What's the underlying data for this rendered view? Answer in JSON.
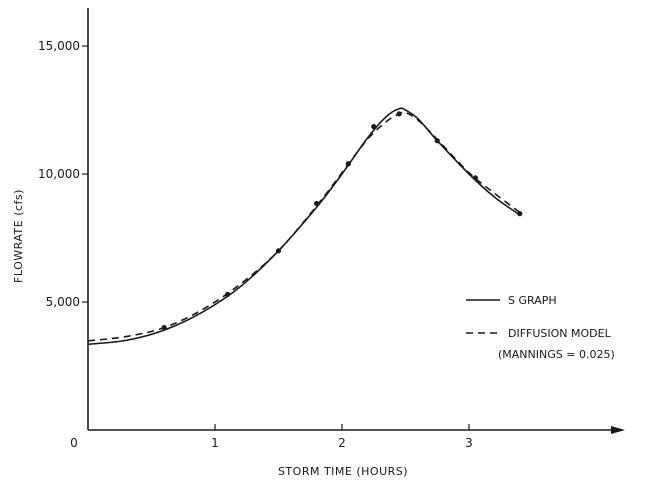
{
  "chart_data": {
    "type": "line",
    "xlabel": "STORM TIME (HOURS)",
    "ylabel": "FLOWRATE (cfs)",
    "xlim": [
      0,
      4.3
    ],
    "ylim": [
      0,
      16500
    ],
    "x_ticks": [
      {
        "value": 0,
        "label": "0"
      },
      {
        "value": 1,
        "label": "1"
      },
      {
        "value": 2,
        "label": "2"
      },
      {
        "value": 3,
        "label": "3"
      }
    ],
    "y_ticks": [
      {
        "value": 5000,
        "label": "5,000"
      },
      {
        "value": 10000,
        "label": "10,000"
      },
      {
        "value": 15000,
        "label": "15,000"
      }
    ],
    "legend_position": "right",
    "series": [
      {
        "name": "S GRAPH",
        "style": "solid",
        "x": [
          0,
          0.3,
          0.6,
          0.9,
          1.2,
          1.5,
          1.8,
          2.0,
          2.2,
          2.35,
          2.45,
          2.5,
          2.6,
          2.75,
          3.0,
          3.2,
          3.4
        ],
        "y": [
          3350,
          3500,
          3900,
          4600,
          5600,
          7000,
          8700,
          10000,
          11400,
          12250,
          12550,
          12500,
          12150,
          11300,
          10000,
          9100,
          8400
        ]
      },
      {
        "name": "DIFFUSION MODEL",
        "style": "dashed",
        "note": "(MANNINGS = 0.025)",
        "x": [
          0,
          0.3,
          0.6,
          0.9,
          1.2,
          1.5,
          1.8,
          2.0,
          2.2,
          2.35,
          2.45,
          2.5,
          2.6,
          2.75,
          3.0,
          3.2,
          3.4
        ],
        "y": [
          3480,
          3650,
          4000,
          4700,
          5700,
          7000,
          8750,
          10050,
          11350,
          12050,
          12350,
          12400,
          12100,
          11350,
          10050,
          9250,
          8500
        ]
      }
    ],
    "markers": {
      "x": [
        0.6,
        1.1,
        1.5,
        1.8,
        2.05,
        2.25,
        2.45,
        2.75,
        3.05,
        3.4
      ],
      "y": [
        4000,
        5300,
        7000,
        8850,
        10400,
        11850,
        12350,
        11300,
        9850,
        8450
      ]
    }
  }
}
